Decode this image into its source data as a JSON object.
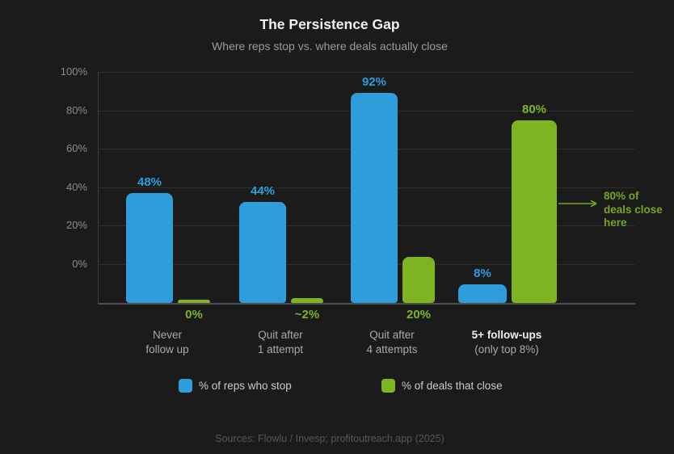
{
  "chart": {
    "title": "The Persistence Gap",
    "subtitle": "Where reps stop vs. where deals actually close",
    "source": "Sources: Flowlu / Invesp; profitoutreach.app (2025)"
  },
  "legend": {
    "reps": "% of reps who stop",
    "close": "% of deals that close"
  },
  "colors": {
    "background": "#1B1B1B",
    "reps_blue": "#2D9EDB",
    "close_green": "#7EB422",
    "annotation_green": "#74A620",
    "title_white": "#F1F1F1",
    "muted_gray": "#9B9B9B"
  },
  "chart_data": {
    "type": "bar",
    "title": "The Persistence Gap",
    "subtitle": "Where reps stop vs. where deals actually close",
    "categories": [
      "Never follow up",
      "Quit after 1 attempt",
      "Quit after 4 attempts",
      "5+ follow-ups (only top 8%)"
    ],
    "series": [
      {
        "name": "% of reps who stop",
        "color": "#2D9EDB",
        "values": [
          48,
          44,
          92,
          8
        ]
      },
      {
        "name": "% of deals that close",
        "color": "#7EB422",
        "values": [
          0,
          2,
          20,
          80
        ]
      }
    ],
    "y_ticks": [
      "100%",
      "80%",
      "60%",
      "40%",
      "20%",
      "0%"
    ],
    "ylim": [
      0,
      100
    ],
    "grid": true,
    "legend_position": "bottom",
    "groups": [
      {
        "category_lines": [
          "Never",
          "follow up"
        ],
        "reps": 48,
        "reps_label": "48%",
        "close": 0,
        "close_label": "0%",
        "close_label_position": "below",
        "highlight": false
      },
      {
        "category_lines": [
          "Quit after",
          "1 attempt"
        ],
        "reps": 44,
        "reps_label": "44%",
        "close": 2,
        "close_label": "~2%",
        "close_label_position": "below",
        "highlight": false
      },
      {
        "category_lines": [
          "Quit after",
          "4 attempts"
        ],
        "reps": 92,
        "reps_label": "92%",
        "close": 20,
        "close_label": "20%",
        "close_label_position": "below",
        "highlight": false
      },
      {
        "category_lines": [
          "5+ follow-ups",
          "(only top 8%)"
        ],
        "reps": 8,
        "reps_label": "8%",
        "close": 80,
        "close_label": "80%",
        "close_label_position": "above",
        "highlight": true
      }
    ],
    "annotation": {
      "text": "80% of deals close here",
      "lines": [
        "80% of",
        "deals close",
        "here"
      ]
    }
  }
}
